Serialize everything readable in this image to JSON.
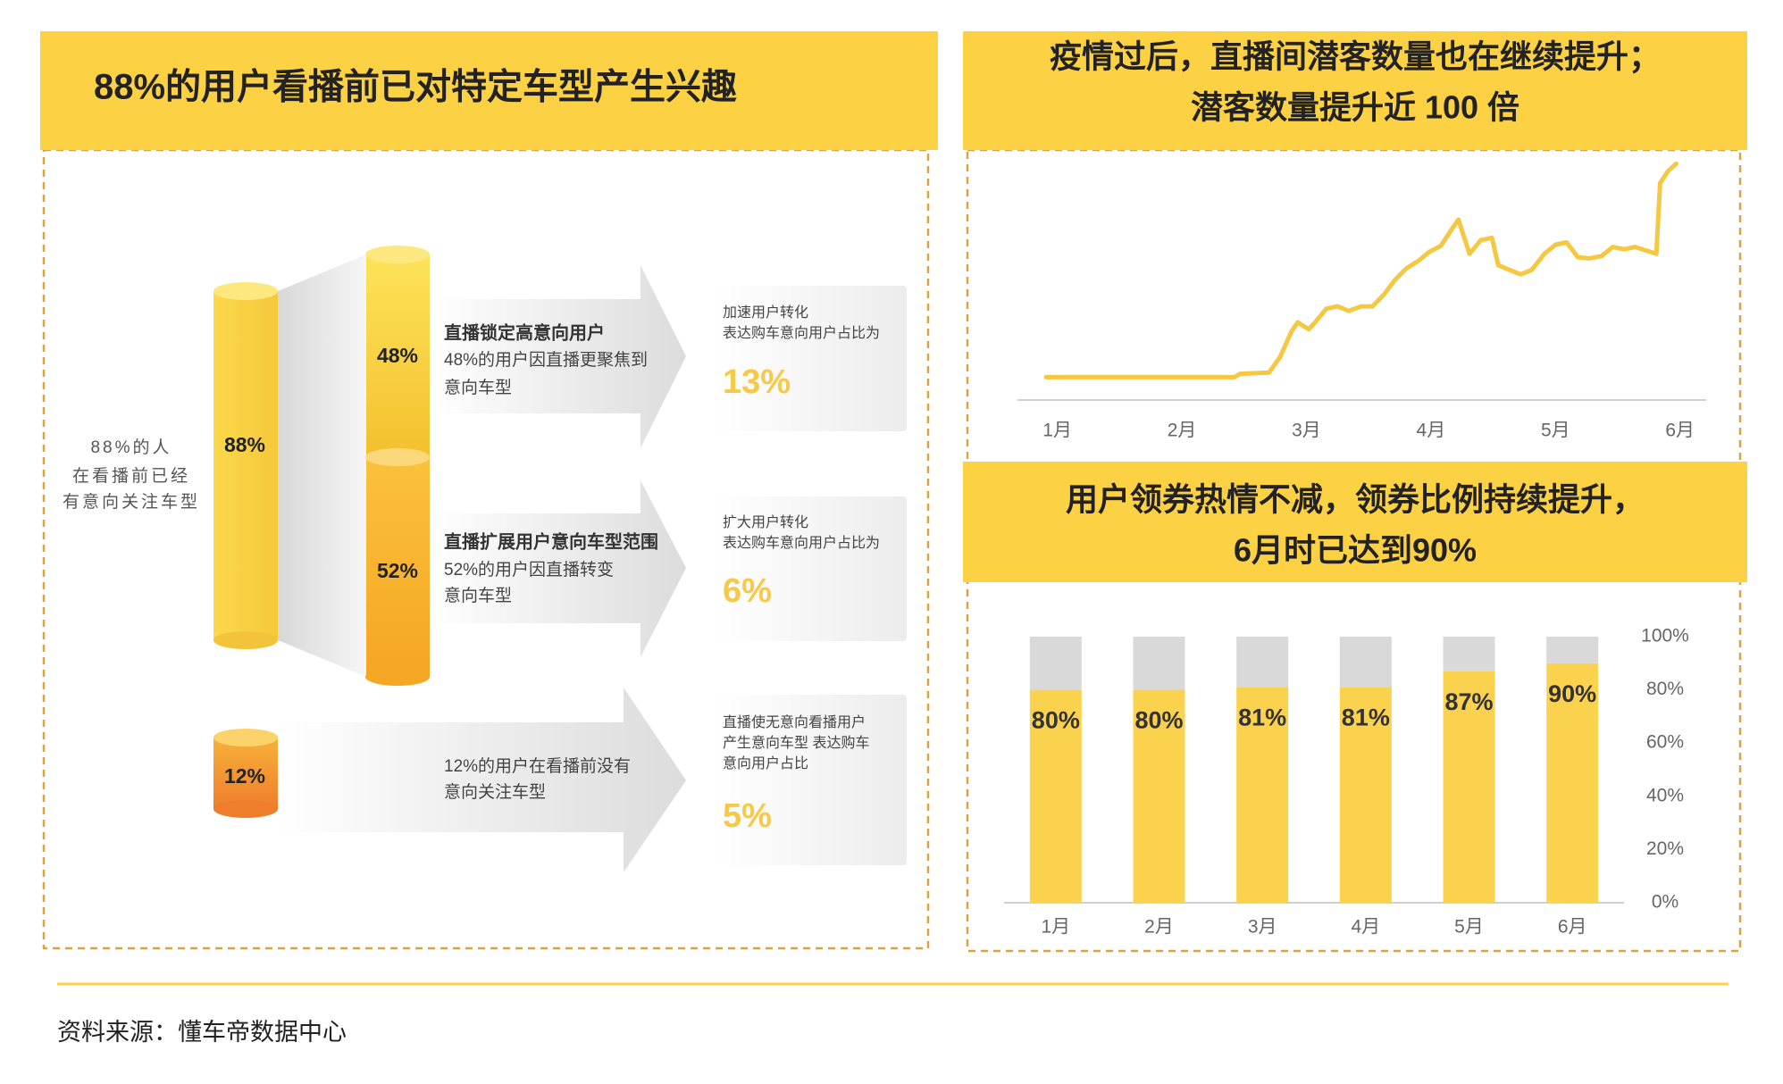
{
  "left_panel": {
    "title": "88%的用户看播前已对特定车型产生兴趣",
    "side_note": [
      "88%的人",
      "在看播前已经",
      "有意向关注车型"
    ],
    "cylinders": [
      "88%",
      "48%",
      "52%",
      "12%"
    ],
    "rows": [
      {
        "heading": "直播锁定高意向用户",
        "desc": [
          "48%的用户因直播更聚焦到",
          "意向车型"
        ],
        "card": [
          "加速用户转化",
          "表达购车意向用户占比为"
        ],
        "value": "13%"
      },
      {
        "heading": "直播扩展用户意向车型范围",
        "desc": [
          "52%的用户因直播转变",
          "意向车型"
        ],
        "card": [
          "扩大用户转化",
          "表达购车意向用户占比为"
        ],
        "value": "6%"
      },
      {
        "desc": [
          "12%的用户在看播前没有",
          "意向关注车型"
        ],
        "card": [
          "直播使无意向看播用户",
          "产生意向车型 表达购车",
          "意向用户占比"
        ],
        "value": "5%"
      }
    ]
  },
  "chart_data": [
    {
      "type": "line",
      "title": [
        "疫情过后，直播间潜客数量也在继续提升；",
        "潜客数量提升近 100 倍"
      ],
      "x": [
        0.91,
        2.42,
        2.47,
        2.7,
        2.79,
        2.88,
        2.93,
        3.02,
        3.07,
        3.16,
        3.25,
        3.34,
        3.44,
        3.53,
        3.62,
        3.71,
        3.8,
        3.9,
        3.99,
        4.08,
        4.17,
        4.22,
        4.31,
        4.4,
        4.49,
        4.54,
        4.63,
        4.72,
        4.81,
        4.91,
        5.0,
        5.09,
        5.18,
        5.27,
        5.37,
        5.46,
        5.55,
        5.64,
        5.81,
        5.84,
        5.9,
        5.97
      ],
      "values": [
        20,
        20,
        23,
        24,
        38,
        60,
        68,
        62,
        68,
        80,
        82,
        78,
        82,
        82,
        92,
        105,
        115,
        122,
        130,
        135,
        150,
        158,
        128,
        140,
        142,
        118,
        114,
        110,
        114,
        128,
        136,
        138,
        125,
        124,
        126,
        134,
        132,
        134,
        128,
        190,
        200,
        207
      ],
      "color": "#f5c842",
      "xlim": [
        0.68,
        6.21
      ],
      "ylim": [
        0,
        215
      ],
      "xticks": [
        {
          "value": 1,
          "label": "1月"
        },
        {
          "value": 2,
          "label": "2月"
        },
        {
          "value": 3,
          "label": "3月"
        },
        {
          "value": 4,
          "label": "4月"
        },
        {
          "value": 5,
          "label": "5月"
        },
        {
          "value": 6,
          "label": "6月"
        }
      ]
    },
    {
      "type": "stacked_bar",
      "title": [
        "用户领券热情不减，领券比例持续提升，",
        "6月时已达到90%"
      ],
      "categories": [
        "1月",
        "2月",
        "3月",
        "4月",
        "5月",
        "6月"
      ],
      "series": [
        {
          "color": "#fbd24e",
          "values": [
            80,
            80,
            81,
            81,
            87,
            90
          ],
          "value_labels": [
            "80%",
            "80%",
            "81%",
            "81%",
            "87%",
            "90%"
          ]
        },
        {
          "color": "#d9d9d9",
          "values": [
            20,
            20,
            19,
            19,
            13,
            10
          ]
        }
      ],
      "ylim": [
        0,
        100
      ],
      "yticks": [
        {
          "value": 0,
          "label": "0%"
        },
        {
          "value": 20,
          "label": "20%"
        },
        {
          "value": 40,
          "label": "40%"
        },
        {
          "value": 60,
          "label": "60%"
        },
        {
          "value": 80,
          "label": "80%"
        },
        {
          "value": 100,
          "label": "100%"
        }
      ]
    }
  ],
  "footer": "资料来源：懂车帝数据中心"
}
